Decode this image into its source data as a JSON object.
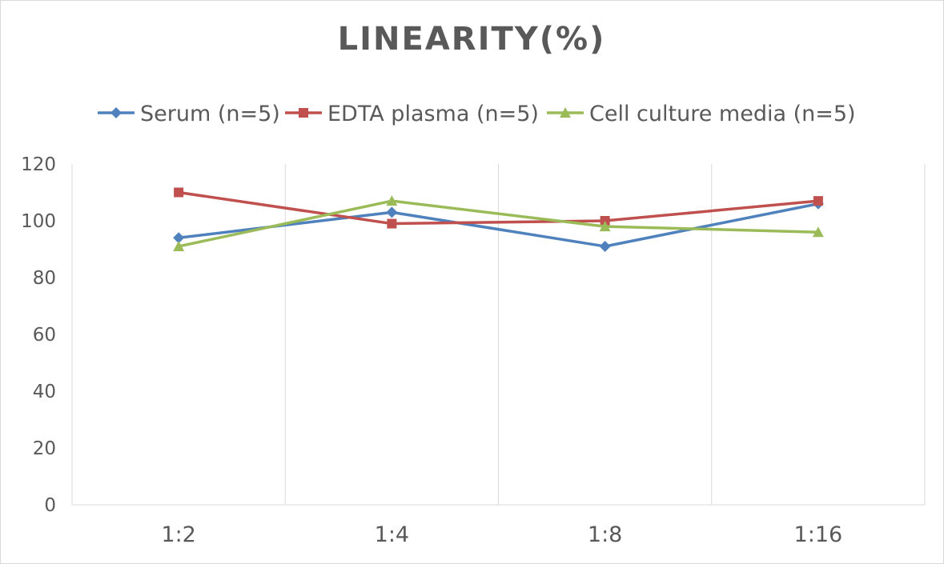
{
  "chart_data": {
    "type": "line",
    "title": "LINEARITY(%)",
    "categories": [
      "1:2",
      "1:4",
      "1:8",
      "1:16"
    ],
    "series": [
      {
        "name": "Serum (n=5)",
        "values": [
          94,
          103,
          91,
          106
        ],
        "color": "#4f81bd",
        "marker": "diamond"
      },
      {
        "name": "EDTA plasma (n=5)",
        "values": [
          110,
          99,
          100,
          107
        ],
        "color": "#c0504d",
        "marker": "square"
      },
      {
        "name": "Cell culture media (n=5)",
        "values": [
          91,
          107,
          98,
          96
        ],
        "color": "#9bbb59",
        "marker": "triangle"
      }
    ],
    "ylim": [
      0,
      120
    ],
    "yticks": [
      "0",
      "20",
      "40",
      "60",
      "80",
      "100",
      "120"
    ],
    "xlabel": "",
    "ylabel": "",
    "grid": "vertical",
    "legend": "top"
  }
}
